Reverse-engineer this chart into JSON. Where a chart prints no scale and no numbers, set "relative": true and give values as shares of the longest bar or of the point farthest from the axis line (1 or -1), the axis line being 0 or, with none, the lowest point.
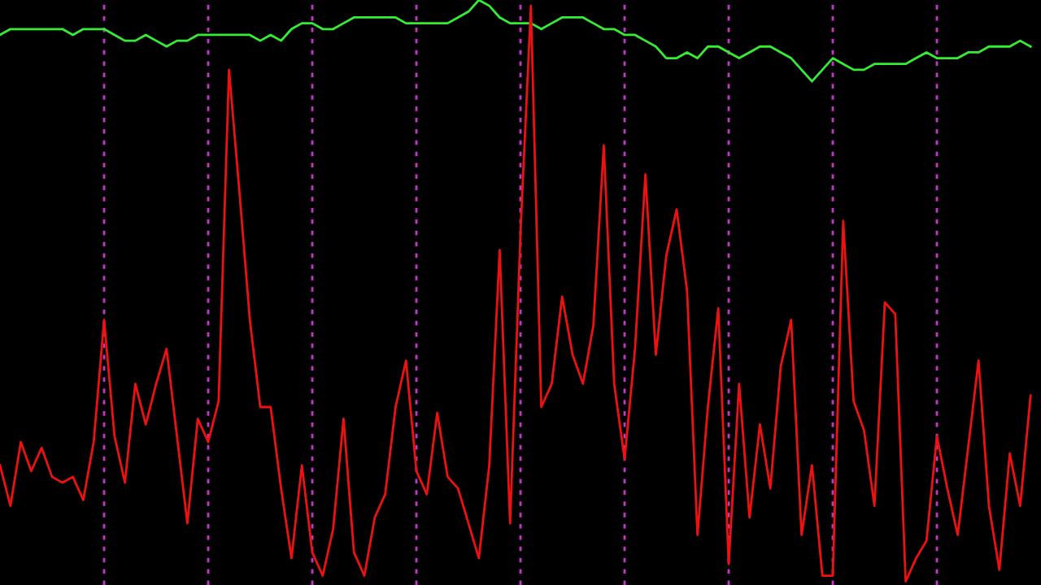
{
  "chart_data": {
    "type": "line",
    "relative": true,
    "grid": "x",
    "line_style": "solid",
    "marker": "none",
    "categories": [
      null,
      null,
      null,
      null,
      null,
      null,
      null,
      null,
      null,
      null,
      null,
      null,
      null,
      null,
      null,
      null,
      null,
      null,
      null,
      null,
      null,
      null,
      null,
      null,
      null,
      null,
      null,
      null,
      null,
      null,
      null,
      null,
      null,
      null,
      null,
      null,
      null,
      null,
      null,
      null,
      null,
      null,
      null,
      null,
      null,
      null,
      null,
      null,
      null,
      null,
      null,
      null,
      null,
      null,
      null,
      null,
      null,
      null,
      null,
      null,
      null,
      null,
      null,
      null,
      null,
      null,
      null,
      null,
      null,
      null,
      null,
      null,
      null,
      null,
      null,
      null,
      null,
      null,
      null,
      null,
      null,
      null,
      null,
      null,
      null,
      null,
      null,
      null,
      null,
      null,
      null,
      null,
      null,
      null,
      null,
      null,
      null,
      null,
      null,
      null
    ],
    "series": [
      {
        "color": "#33ee33",
        "values": [
          0.94,
          0.95,
          0.95,
          0.95,
          0.95,
          0.95,
          0.95,
          0.94,
          0.95,
          0.95,
          0.95,
          0.94,
          0.93,
          0.93,
          0.94,
          0.93,
          0.92,
          0.93,
          0.93,
          0.94,
          0.94,
          0.94,
          0.94,
          0.94,
          0.94,
          0.93,
          0.94,
          0.93,
          0.95,
          0.96,
          0.96,
          0.95,
          0.95,
          0.96,
          0.97,
          0.97,
          0.97,
          0.97,
          0.97,
          0.96,
          0.96,
          0.96,
          0.96,
          0.96,
          0.97,
          0.98,
          1.0,
          0.99,
          0.97,
          0.96,
          0.96,
          0.96,
          0.95,
          0.96,
          0.97,
          0.97,
          0.97,
          0.96,
          0.95,
          0.95,
          0.94,
          0.94,
          0.93,
          0.92,
          0.9,
          0.9,
          0.91,
          0.9,
          0.92,
          0.92,
          0.91,
          0.9,
          0.91,
          0.92,
          0.92,
          0.91,
          0.9,
          0.88,
          0.86,
          0.88,
          0.9,
          0.89,
          0.88,
          0.88,
          0.89,
          0.89,
          0.89,
          0.89,
          0.9,
          0.91,
          0.9,
          0.9,
          0.9,
          0.91,
          0.91,
          0.92,
          0.92,
          0.92,
          0.93,
          0.92
        ]
      },
      {
        "color": "#ee1111",
        "values": [
          0.2,
          0.13,
          0.24,
          0.19,
          0.23,
          0.18,
          0.17,
          0.18,
          0.14,
          0.24,
          0.45,
          0.25,
          0.17,
          0.34,
          0.27,
          0.34,
          0.4,
          0.25,
          0.1,
          0.28,
          0.24,
          0.31,
          0.88,
          0.67,
          0.45,
          0.3,
          0.3,
          0.16,
          0.04,
          0.2,
          0.05,
          0.01,
          0.09,
          0.28,
          0.05,
          0.01,
          0.11,
          0.15,
          0.3,
          0.38,
          0.19,
          0.15,
          0.29,
          0.18,
          0.16,
          0.1,
          0.04,
          0.2,
          0.57,
          0.1,
          0.6,
          0.99,
          0.3,
          0.34,
          0.49,
          0.39,
          0.34,
          0.44,
          0.75,
          0.34,
          0.21,
          0.4,
          0.7,
          0.39,
          0.56,
          0.64,
          0.5,
          0.08,
          0.3,
          0.47,
          0.03,
          0.34,
          0.11,
          0.27,
          0.16,
          0.37,
          0.45,
          0.08,
          0.2,
          0.01,
          0.01,
          0.62,
          0.31,
          0.26,
          0.13,
          0.48,
          0.46,
          0.0,
          0.04,
          0.07,
          0.25,
          0.16,
          0.08,
          0.23,
          0.38,
          0.13,
          0.02,
          0.22,
          0.13,
          0.32
        ]
      }
    ]
  }
}
